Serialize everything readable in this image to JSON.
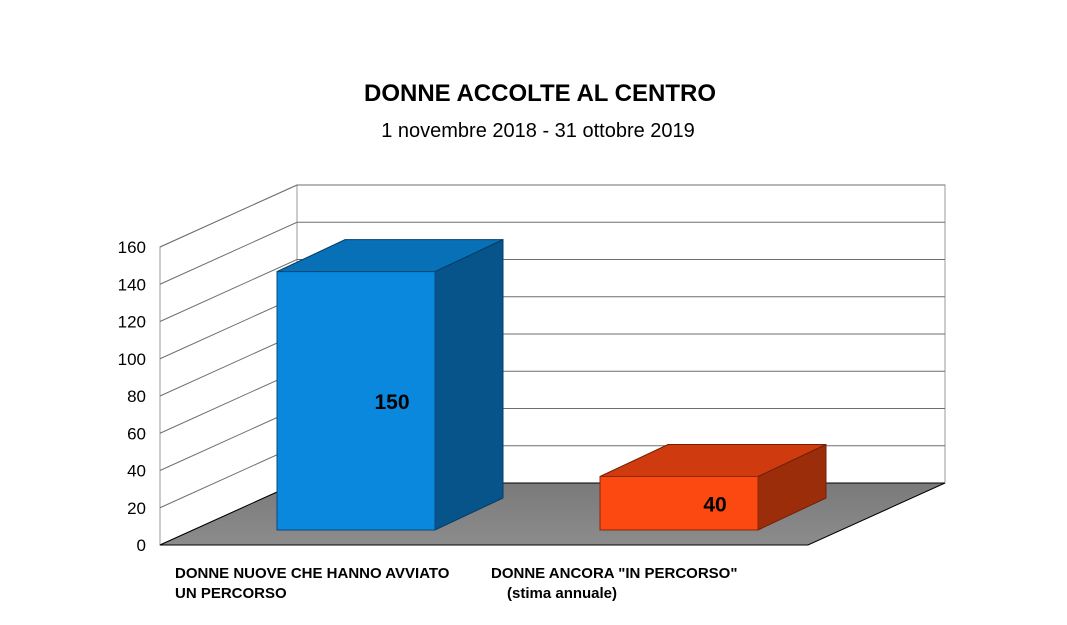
{
  "chart_data": {
    "type": "bar",
    "title": "DONNE ACCOLTE AL CENTRO",
    "subtitle": "1 novembre 2018 - 31 ottobre 2019",
    "categories": [
      [
        "DONNE NUOVE CHE HANNO AVVIATO",
        "UN PERCORSO"
      ],
      [
        "DONNE ANCORA \"IN PERCORSO\"",
        "(stima annuale)"
      ]
    ],
    "values": [
      150,
      40
    ],
    "colors": [
      "#0a88de",
      "#fc4811"
    ],
    "ylim": [
      0,
      160
    ],
    "yticks": [
      0,
      20,
      40,
      60,
      80,
      100,
      120,
      140,
      160
    ],
    "grid": true,
    "three_d": true
  }
}
